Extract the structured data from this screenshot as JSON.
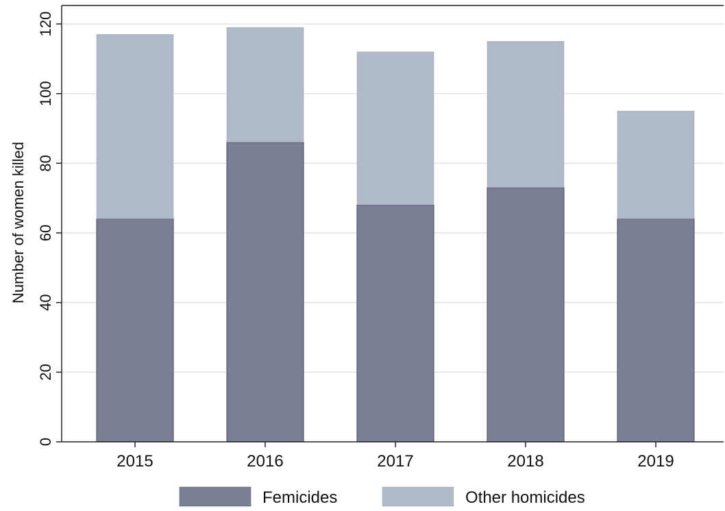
{
  "chart_data": {
    "type": "bar",
    "stacked": true,
    "categories": [
      "2015",
      "2016",
      "2017",
      "2018",
      "2019"
    ],
    "series": [
      {
        "name": "Femicides",
        "values": [
          64,
          86,
          68,
          73,
          64
        ],
        "color": "#7a7f96"
      },
      {
        "name": "Other homicides",
        "values": [
          53,
          33,
          44,
          42,
          31
        ],
        "color": "#b1bac9"
      }
    ],
    "title": "",
    "xlabel": "",
    "ylabel": "Number of women killed",
    "ylim": [
      0,
      125
    ],
    "yticks": [
      "0",
      "20",
      "40",
      "60",
      "80",
      "100",
      "120"
    ],
    "grid": true,
    "legend": "bottom",
    "colors": {
      "grid": "#e3e3e3",
      "axis": "#222222",
      "bar_outline": "#4a4f66"
    }
  }
}
